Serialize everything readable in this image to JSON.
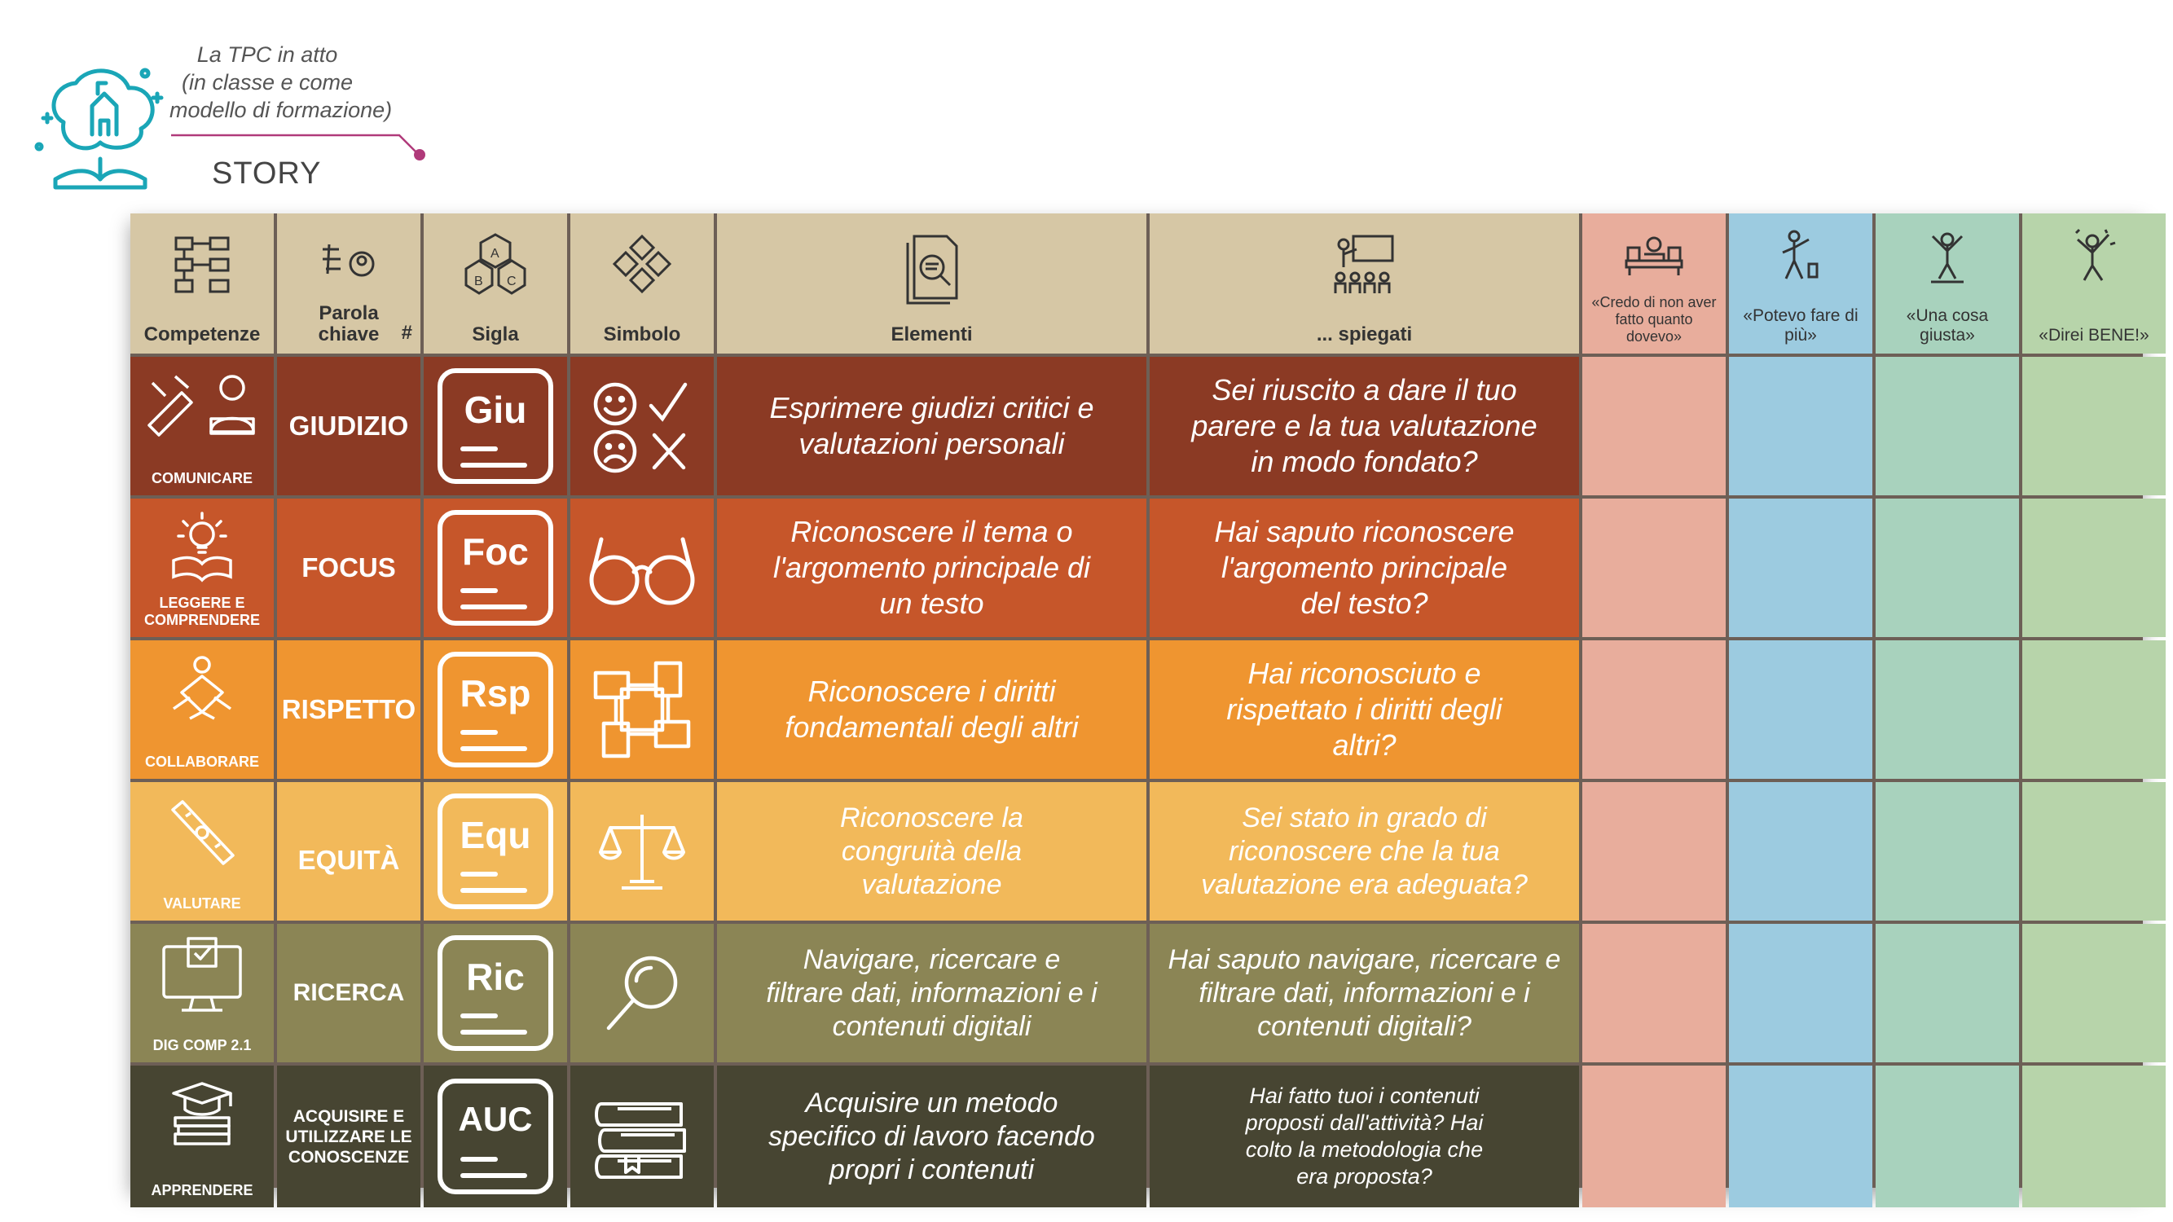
{
  "header": {
    "subtitle_lines": [
      "La TPC in atto",
      "(in classe e come",
      "modello di formazione)"
    ],
    "story": "STORY"
  },
  "columns": {
    "competenze": "Competenze",
    "parola_chiave": "Parola chiave",
    "hash": "#",
    "sigla": "Sigla",
    "simbolo": "Simbolo",
    "elementi": "Elementi",
    "spiegati": "... spiegati",
    "eval1": "«Credo di non aver fatto quanto dovevo»",
    "eval2": "«Potevo fare di più»",
    "eval3": "«Una cosa giusta»",
    "eval4": "«Direi BENE!»"
  },
  "rows": [
    {
      "competenza": "COMUNICARE",
      "parola": "GIUDIZIO",
      "sigla": "Giu",
      "elementi": "Esprimere giudizi critici e valutazioni personali",
      "spiegati": "Sei riuscito a dare il tuo parere e la tua valutazione in modo fondato?"
    },
    {
      "competenza": "LEGGERE E COMPRENDERE",
      "parola": "FOCUS",
      "sigla": "Foc",
      "elementi": "Riconoscere il tema o l'argomento principale di un testo",
      "spiegati": "Hai saputo riconoscere l'argomento principale del testo?"
    },
    {
      "competenza": "COLLABORARE",
      "parola": "RISPETTO",
      "sigla": "Rsp",
      "elementi": "Riconoscere i diritti fondamentali degli altri",
      "spiegati": "Hai riconosciuto e rispettato i diritti degli altri?"
    },
    {
      "competenza": "VALUTARE",
      "parola": "EQUITÀ",
      "sigla": "Equ",
      "elementi": "Riconoscere la congruità della valutazione",
      "spiegati": "Sei stato in grado di riconoscere che la tua valutazione era adeguata?"
    },
    {
      "competenza": "DIG COMP 2.1",
      "parola": "RICERCA",
      "sigla": "Ric",
      "elementi": "Navigare, ricercare e filtrare dati, informazioni e i contenuti digitali",
      "spiegati": "Hai saputo navigare, ricercare e filtrare dati, informazioni e i contenuti digitali?"
    },
    {
      "competenza": "APPRENDERE",
      "parola": "ACQUISIRE E UTILIZZARE LE CONOSCENZE",
      "sigla": "AUC",
      "elementi": "Acquisire un metodo specifico di lavoro facendo propri i contenuti",
      "spiegati": "Hai fatto tuoi i contenuti proposti dall'attività? Hai colto la metodologia che era proposta?"
    }
  ]
}
